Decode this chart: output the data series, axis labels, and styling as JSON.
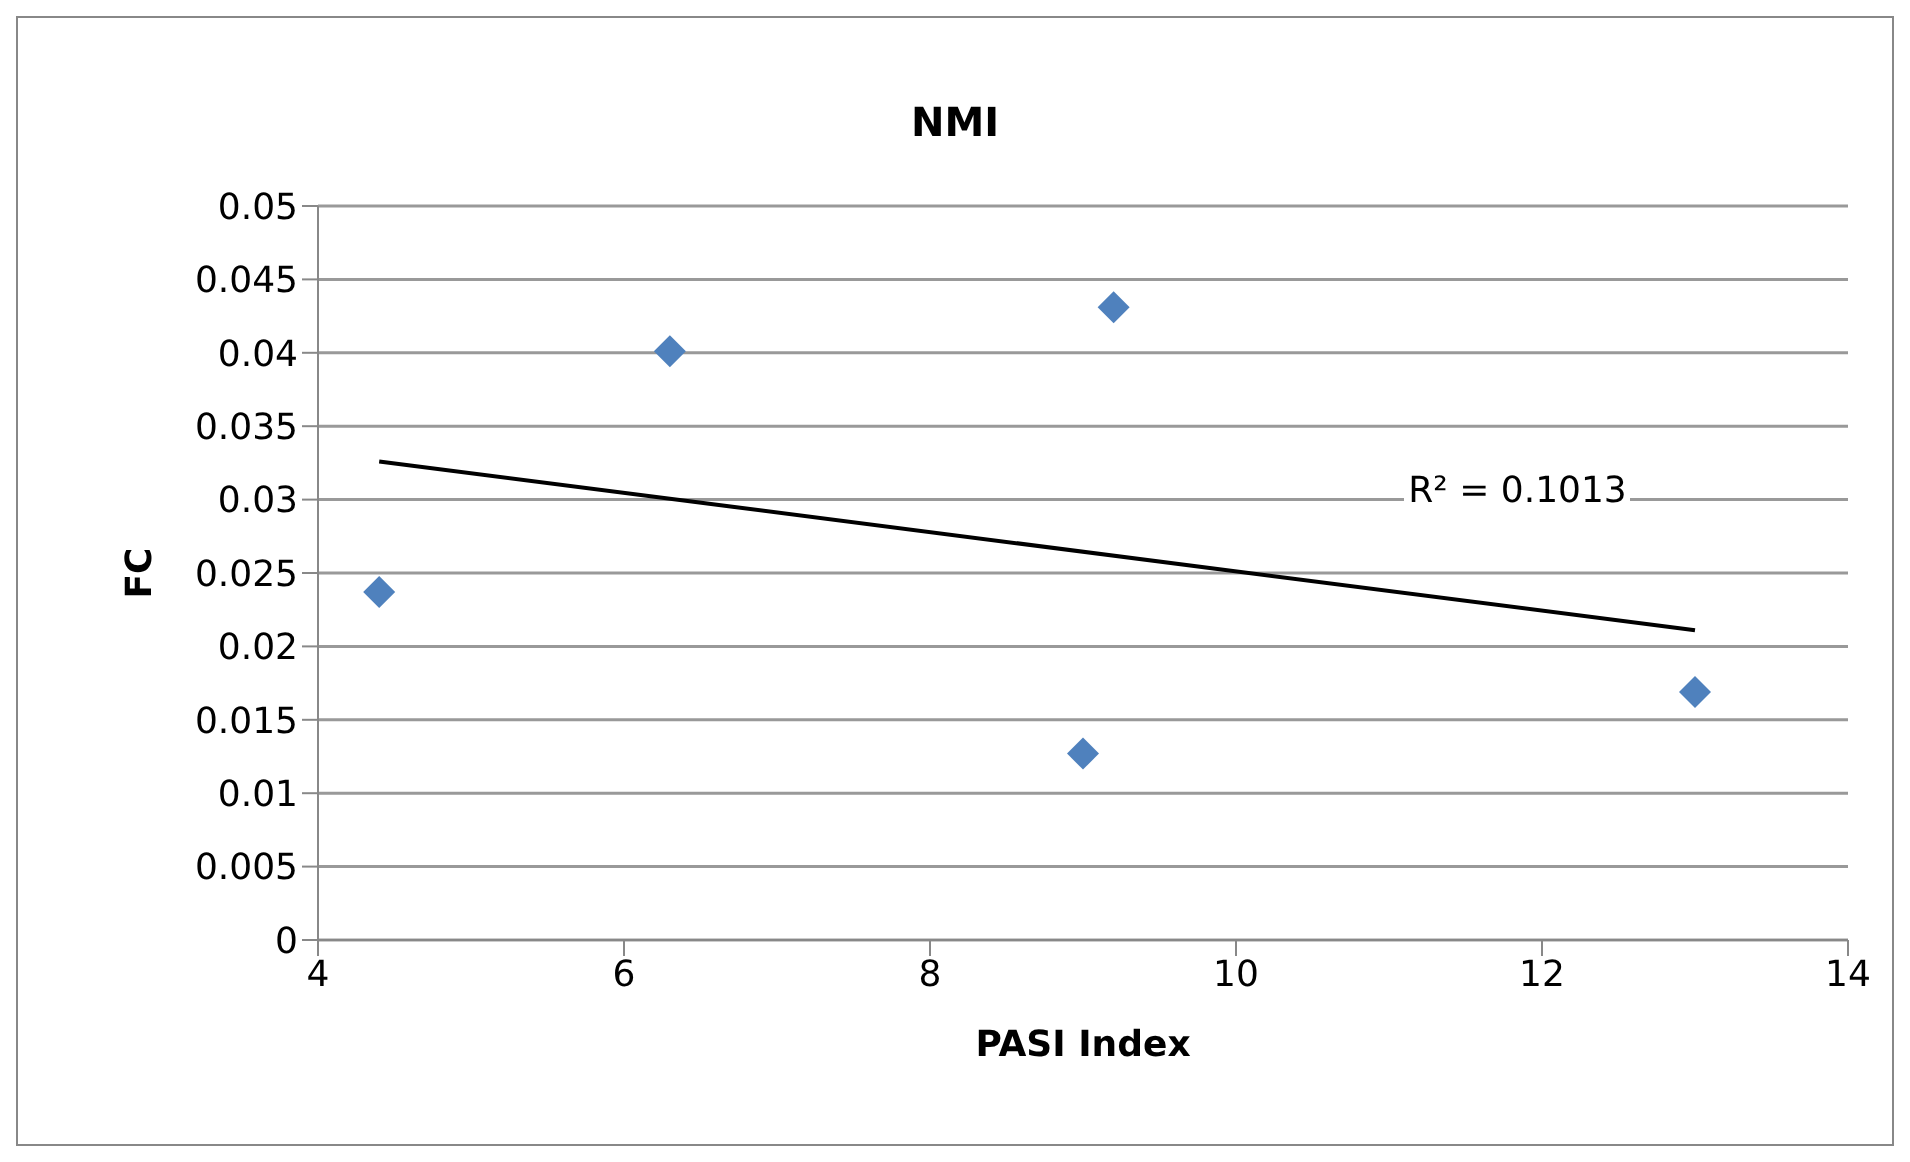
{
  "chart_data": {
    "type": "scatter",
    "title": "NMI",
    "xlabel": "PASI Index",
    "ylabel": "FC",
    "xlim": [
      4,
      14
    ],
    "xticks": [
      4,
      6,
      8,
      10,
      12,
      14
    ],
    "ylim": [
      0,
      0.05
    ],
    "yticks": [
      0,
      0.005,
      0.01,
      0.015,
      0.02,
      0.025,
      0.03,
      0.035,
      0.04,
      0.045,
      0.05
    ],
    "grid": "y",
    "legend": false,
    "marker": "diamond",
    "series": [
      {
        "type": "scatter",
        "color": "#4f81bd",
        "x": [
          4.4,
          6.3,
          9.2,
          9,
          13
        ],
        "values": [
          0.0237,
          0.0401,
          0.0431,
          0.0127,
          0.0169
        ]
      },
      {
        "type": "line",
        "color": "#000000",
        "x": [
          4.4,
          13
        ],
        "values": [
          0.0326,
          0.0211
        ],
        "marker": "none"
      }
    ],
    "annotations": [
      "R² = 0.1013"
    ]
  }
}
